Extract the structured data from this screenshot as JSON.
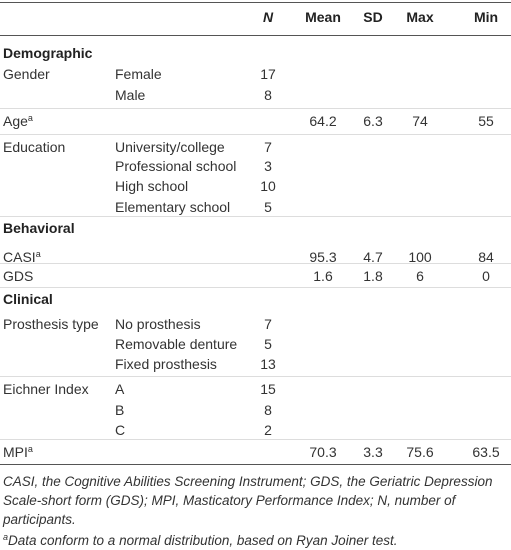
{
  "table": {
    "header": {
      "n": "N",
      "mean": "Mean",
      "sd": "SD",
      "max": "Max",
      "min": "Min"
    },
    "rows": [
      {
        "section": "Demographic"
      },
      {
        "label": "Gender",
        "sub": "Female",
        "n": 17
      },
      {
        "sub": "Male",
        "n": 8
      },
      {
        "label": "Age",
        "sup": "a",
        "mean": 64.2,
        "sd": 6.3,
        "max": 74,
        "min": 55
      },
      {
        "label": "Education",
        "sub": "University/college",
        "n": 7
      },
      {
        "sub": "Professional school",
        "n": 3
      },
      {
        "sub": "High school",
        "n": 10
      },
      {
        "sub": "Elementary school",
        "n": 5
      },
      {
        "section": "Behavioral"
      },
      {
        "label": "CASI",
        "sup": "a",
        "mean": 95.3,
        "sd": 4.7,
        "max": 100,
        "min": 84
      },
      {
        "label": "GDS",
        "mean": 1.6,
        "sd": 1.8,
        "max": 6,
        "min": 0
      },
      {
        "section": "Clinical"
      },
      {
        "label": "Prosthesis type",
        "sub": "No prosthesis",
        "n": 7
      },
      {
        "sub": "Removable denture",
        "n": 5
      },
      {
        "sub": "Fixed prosthesis",
        "n": 13
      },
      {
        "label": "Eichner Index",
        "sub": "A",
        "n": 15
      },
      {
        "sub": "B",
        "n": 8
      },
      {
        "sub": "C",
        "n": 2
      },
      {
        "label": "MPI",
        "sup": "a",
        "mean": 70.3,
        "sd": 3.3,
        "max": 75.6,
        "min": 63.5
      }
    ]
  },
  "notes": {
    "abbreviations": "CASI, the Cognitive Abilities Screening Instrument; GDS, the Geriatric Depression Scale-short form (GDS); MPI, Masticatory Performance Index; N, number of participants.",
    "marker": "a",
    "normality": "Data conform to a normal distribution, based on Ryan Joiner test."
  }
}
